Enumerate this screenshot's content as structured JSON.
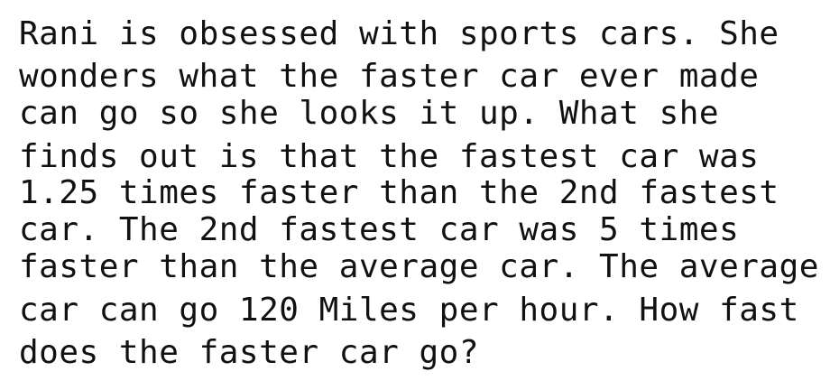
{
  "problem": {
    "lines": [
      "Rani is obsessed with sports cars. She",
      "wonders what the faster car ever made",
      "can go so she looks it up. What she",
      "finds out is that the fastest car was",
      "1.25 times faster than the 2nd fastest",
      "car. The 2nd fastest car was 5 times",
      "faster than the average car. The average",
      "car can go 120 Miles per hour. How fast",
      "does the faster car go?"
    ]
  }
}
